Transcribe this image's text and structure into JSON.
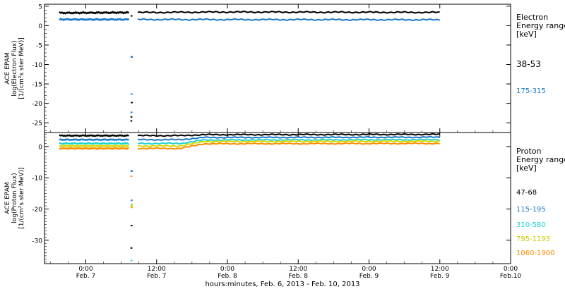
{
  "chart_data": [
    {
      "type": "line",
      "panel": "electron",
      "ylabel_lines": [
        "ACE EPAM",
        "log(Electron Flux)",
        "[1/(cm²s ster MeV)]"
      ],
      "yticks": [
        5,
        0,
        -5,
        -10,
        -15,
        -20,
        -25
      ],
      "ylim": [
        -27.5,
        5.5
      ],
      "legend_title_lines": [
        "Electron",
        "Energy ranges",
        "[keV]"
      ],
      "series": [
        {
          "name": "38-53",
          "color": "#000000",
          "level": 3.3,
          "drift": [
            [
              12,
              3.2
            ],
            [
              48,
              3.5
            ],
            [
              84,
              3.4
            ]
          ],
          "gap_points": [
            [
              31.75,
              2.5
            ],
            [
              31.78,
              -19.8
            ],
            [
              31.72,
              -23.5
            ],
            [
              31.7,
              -24.5
            ]
          ]
        },
        {
          "name": "175-315",
          "color": "#1f77c8",
          "level": 1.6,
          "drift": [
            [
              12,
              1.6
            ],
            [
              84,
              1.5
            ]
          ],
          "gap_points": [
            [
              31.72,
              -8.0
            ],
            [
              31.8,
              -8.1
            ],
            [
              31.76,
              -17.6
            ],
            [
              31.73,
              -22.3
            ]
          ]
        }
      ]
    },
    {
      "type": "line",
      "panel": "proton",
      "ylabel_lines": [
        "ACE EPAM",
        "log(Proton Flux)",
        "[1/(cm²s ster MeV)]"
      ],
      "yticks": [
        0,
        -10,
        -20,
        -30
      ],
      "ylim": [
        -37.5,
        4.5
      ],
      "legend_title_lines": [
        "Proton",
        "Energy ranges",
        "[keV]"
      ],
      "series": [
        {
          "name": "47-68",
          "color": "#000000",
          "drift": [
            [
              12,
              3.5
            ],
            [
              40,
              3.5
            ],
            [
              44,
              3.8
            ],
            [
              84,
              3.9
            ]
          ],
          "gap_points": [
            [
              31.75,
              -25.3
            ],
            [
              31.72,
              -32.5
            ]
          ]
        },
        {
          "name": "115-195",
          "color": "#1f77c8",
          "drift": [
            [
              12,
              2.2
            ],
            [
              40,
              2.2
            ],
            [
              44,
              2.9
            ],
            [
              84,
              3.0
            ]
          ],
          "gap_points": [
            [
              31.72,
              -7.8
            ],
            [
              31.8,
              -7.9
            ],
            [
              31.76,
              -17.2
            ]
          ]
        },
        {
          "name": "310-580",
          "color": "#22d3d3",
          "drift": [
            [
              12,
              1.0
            ],
            [
              40,
              1.0
            ],
            [
              44,
              2.1
            ],
            [
              84,
              2.2
            ]
          ],
          "gap_points": [
            [
              31.78,
              -18.6
            ],
            [
              31.74,
              -36.5
            ]
          ]
        },
        {
          "name": "795-1193",
          "color": "#d8d800",
          "drift": [
            [
              12,
              0.2
            ],
            [
              40,
              0.2
            ],
            [
              44,
              1.6
            ],
            [
              84,
              1.7
            ]
          ],
          "gap_points": [
            [
              31.73,
              -18.8
            ],
            [
              31.79,
              -19.2
            ]
          ]
        },
        {
          "name": "1060-1900",
          "color": "#ff8c00",
          "drift": [
            [
              12,
              -0.6
            ],
            [
              40,
              -0.6
            ],
            [
              44,
              0.9
            ],
            [
              84,
              1.0
            ]
          ],
          "gap_points": [
            [
              31.75,
              -19.5
            ],
            [
              31.71,
              -9.5
            ]
          ]
        }
      ]
    }
  ],
  "x_axis": {
    "unit": "hours since Feb. 6, 2013 00:00",
    "xlim": [
      17.0,
      96.0
    ],
    "data_start": 19.5,
    "data_gap": [
      31.3,
      32.8
    ],
    "data_end": 84.0,
    "ticks": [
      {
        "x": 24,
        "time": "0:00",
        "date": "Feb. 7"
      },
      {
        "x": 36,
        "time": "12:00",
        "date": "Feb. 7"
      },
      {
        "x": 48,
        "time": "0:00",
        "date": "Feb. 8"
      },
      {
        "x": 60,
        "time": "12:00",
        "date": "Feb. 8"
      },
      {
        "x": 72,
        "time": "0:00",
        "date": "Feb. 9"
      },
      {
        "x": 84,
        "time": "12:00",
        "date": "Feb. 9"
      },
      {
        "x": 96,
        "time": "0:00",
        "date": "Feb.10"
      }
    ],
    "label": "hours:minutes, Feb.  6, 2013 - Feb. 10, 2013"
  }
}
